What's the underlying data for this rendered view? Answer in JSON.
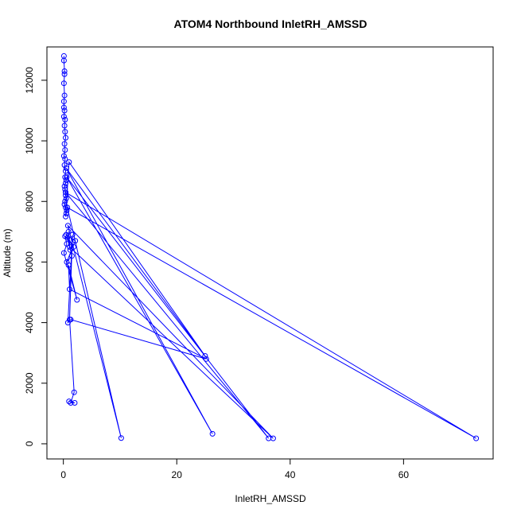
{
  "chart_data": {
    "type": "scatter",
    "title": "ATOM4 Northbound InletRH_AMSSD",
    "xlabel": "InletRH_AMSSD",
    "ylabel": "Altitude (m)",
    "xlim": [
      -2.9,
      75.8
    ],
    "ylim": [
      -500,
      13100
    ],
    "x_ticks": [
      0,
      20,
      40,
      60
    ],
    "y_ticks": [
      0,
      2000,
      4000,
      6000,
      8000,
      10000,
      12000
    ],
    "grid": false,
    "legend": "none",
    "line_color": "#0000ff",
    "point_style": "open-circle",
    "series": [
      {
        "x": [
          0.1,
          0.1,
          0.2,
          0.2,
          0.1,
          0.2,
          0.1,
          0.1,
          0.2,
          0.1,
          0.3,
          0.2,
          0.3,
          0.4,
          0.2,
          0.3,
          0.1,
          0.3,
          0.2,
          0.4,
          0.3,
          0.5,
          0.4,
          0.2,
          0.3,
          0.4,
          0.4,
          0.5,
          0.3,
          0.2,
          0.4,
          0.6,
          0.5,
          0.4,
          1.0,
          25.0,
          0.5,
          26.3,
          0.6,
          36.2,
          0.4,
          72.8,
          0.7,
          10.2,
          0.8,
          37.0,
          1.1,
          0.9,
          1.2,
          0.7,
          1.5,
          0.6,
          2.1,
          0.5,
          1.8,
          0.3,
          0.6,
          0.1,
          2.4,
          0.9,
          1.1,
          25.2,
          1.3,
          0.8,
          1.6,
          1.1,
          1.9,
          1.3,
          2.0,
          1.0
        ],
        "y": [
          12800,
          12650,
          12300,
          12200,
          11900,
          11500,
          11300,
          11100,
          11000,
          10800,
          10700,
          10500,
          10300,
          10100,
          9900,
          9700,
          9500,
          9400,
          9200,
          9000,
          8800,
          8700,
          8600,
          8500,
          8400,
          8300,
          8200,
          8100,
          8000,
          7900,
          7800,
          7700,
          7600,
          7500,
          9300,
          2900,
          9100,
          330,
          8800,
          180,
          8300,
          180,
          7800,
          190,
          7200,
          180,
          6500,
          7000,
          6400,
          6800,
          6200,
          6000,
          6700,
          6900,
          6500,
          6850,
          6600,
          6300,
          4750,
          5900,
          5100,
          2800,
          4100,
          4000,
          6900,
          4100,
          1700,
          1350,
          1350,
          1400
        ]
      }
    ]
  }
}
